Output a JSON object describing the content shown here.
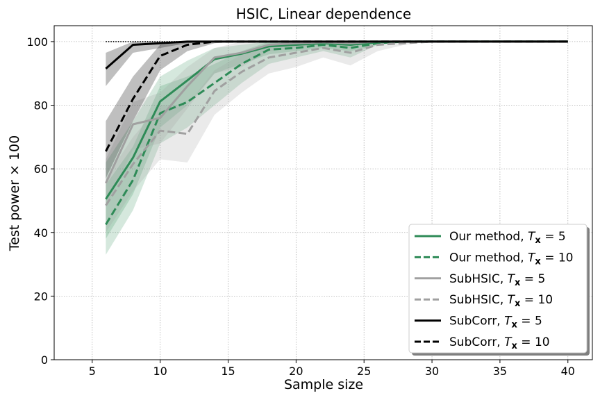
{
  "chart_data": {
    "type": "line",
    "title": "HSIC, Linear dependence",
    "xlabel": "Sample size",
    "ylabel": "Test power × 100",
    "xlim": [
      2.2,
      41.8
    ],
    "ylim": [
      0,
      105
    ],
    "xticks": [
      "5",
      "10",
      "15",
      "20",
      "25",
      "30",
      "35",
      "40"
    ],
    "xtick_values": [
      5,
      10,
      15,
      20,
      25,
      30,
      35,
      40
    ],
    "yticks": [
      "0",
      "20",
      "40",
      "60",
      "80",
      "100"
    ],
    "ytick_values": [
      0,
      20,
      40,
      60,
      80,
      100
    ],
    "grid": true,
    "legend_position": "lower-right",
    "reference_line": {
      "style": "dotted",
      "color": "#000000",
      "x": [
        6,
        40
      ],
      "y": [
        100,
        100
      ]
    },
    "series": [
      {
        "name_prefix": "Our method, ",
        "name_suffix": " = 5",
        "color": "#2e8b57",
        "dash": "solid",
        "band_opacity": 0.2,
        "x": [
          6,
          8,
          10,
          12,
          14,
          16,
          18,
          20,
          22,
          24,
          26,
          28,
          30,
          40
        ],
        "y": [
          50.5,
          63.5,
          81.2,
          87.8,
          94.5,
          96.2,
          98.5,
          99.0,
          99.5,
          99.0,
          99.8,
          100,
          100,
          100
        ],
        "lower": [
          38,
          52,
          73,
          80,
          90,
          93,
          96,
          97,
          98,
          97,
          99,
          100,
          100,
          100
        ],
        "upper": [
          62,
          75,
          89,
          94,
          98,
          99,
          100,
          100,
          100,
          100,
          100,
          100,
          100,
          100
        ]
      },
      {
        "name_prefix": "Our method, ",
        "name_suffix": " = 10",
        "color": "#2e8b57",
        "dash": "dashed",
        "band_opacity": 0.2,
        "x": [
          6,
          8,
          10,
          12,
          14,
          16,
          18,
          20,
          22,
          24,
          26,
          28,
          30,
          40
        ],
        "y": [
          42.5,
          56.5,
          77.5,
          81.0,
          87.0,
          93.0,
          97.5,
          98.0,
          99.0,
          98.0,
          99.5,
          100,
          100,
          100
        ],
        "lower": [
          33,
          47,
          68,
          73,
          80,
          87,
          93,
          95,
          97,
          95,
          99,
          100,
          100,
          100
        ],
        "upper": [
          55,
          67,
          86,
          89,
          93,
          97,
          100,
          100,
          100,
          100,
          100,
          100,
          100,
          100
        ]
      },
      {
        "name_prefix": "SubHSIC, ",
        "name_suffix": " = 5",
        "color": "#a0a0a0",
        "dash": "solid",
        "band_opacity": 0.22,
        "x": [
          6,
          8,
          10,
          12,
          14,
          16,
          18,
          20,
          22,
          24,
          26,
          28,
          30,
          40
        ],
        "y": [
          55.5,
          74.0,
          76.0,
          86.0,
          95.0,
          96.5,
          99.0,
          99.5,
          99.8,
          99.5,
          100,
          100,
          100,
          100
        ],
        "lower": [
          48,
          66,
          68,
          79,
          90,
          92,
          97,
          98,
          99,
          98,
          100,
          100,
          100,
          100
        ],
        "upper": [
          63,
          81,
          84,
          92,
          98,
          100,
          100,
          100,
          100,
          100,
          100,
          100,
          100,
          100
        ]
      },
      {
        "name_prefix": "SubHSIC, ",
        "name_suffix": " = 10",
        "color": "#a0a0a0",
        "dash": "dashed",
        "band_opacity": 0.22,
        "x": [
          6,
          8,
          10,
          12,
          14,
          16,
          18,
          20,
          22,
          24,
          26,
          28,
          30,
          40
        ],
        "y": [
          48.5,
          61.5,
          72.0,
          71.0,
          84.5,
          90.5,
          95.0,
          96.5,
          98.0,
          96.5,
          99.0,
          99.5,
          100,
          100
        ],
        "lower": [
          40,
          53,
          63,
          62,
          77,
          84,
          90,
          92,
          95,
          92.5,
          97,
          99,
          100,
          100
        ],
        "upper": [
          57,
          70,
          80,
          80,
          91,
          96,
          99,
          100,
          100,
          99,
          100,
          100,
          100,
          100
        ]
      },
      {
        "name_prefix": "SubCorr, ",
        "name_suffix": " = 5",
        "color": "#000000",
        "dash": "solid",
        "band_opacity": 0.25,
        "x": [
          6,
          8,
          10,
          12,
          14,
          16,
          18,
          20,
          22,
          24,
          26,
          28,
          30,
          40
        ],
        "y": [
          91.5,
          99.0,
          99.5,
          100,
          100,
          100,
          100,
          100,
          100,
          100,
          100,
          100,
          100,
          100
        ],
        "lower": [
          86,
          96.5,
          98,
          99.5,
          100,
          100,
          100,
          100,
          100,
          100,
          100,
          100,
          100,
          100
        ],
        "upper": [
          96.5,
          100,
          100,
          100,
          100,
          100,
          100,
          100,
          100,
          100,
          100,
          100,
          100,
          100
        ]
      },
      {
        "name_prefix": "SubCorr, ",
        "name_suffix": " = 10",
        "color": "#000000",
        "dash": "dashed",
        "band_opacity": 0.25,
        "x": [
          6,
          8,
          10,
          12,
          14,
          16,
          18,
          20,
          22,
          24,
          26,
          28,
          30,
          40
        ],
        "y": [
          65.5,
          82.0,
          95.5,
          99.0,
          100,
          100,
          100,
          100,
          100,
          100,
          100,
          100,
          100,
          100
        ],
        "lower": [
          57,
          75,
          91,
          97,
          99.5,
          100,
          100,
          100,
          100,
          100,
          100,
          100,
          100,
          100
        ],
        "upper": [
          75,
          89,
          99,
          100,
          100,
          100,
          100,
          100,
          100,
          100,
          100,
          100,
          100,
          100
        ]
      }
    ],
    "legend_symbol": "T",
    "legend_symbol_sub": "x"
  }
}
